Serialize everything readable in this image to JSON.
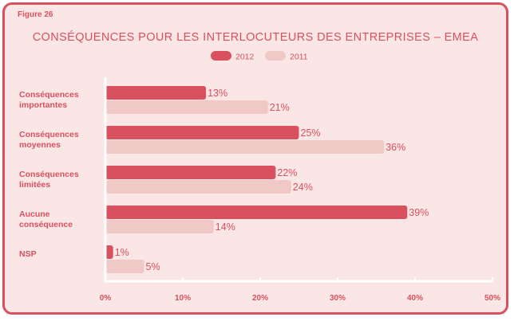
{
  "figure_label": "Figure 26",
  "chart_data": {
    "type": "bar",
    "orientation": "horizontal",
    "title": "CONSÉQUENCES POUR LES INTERLOCUTEURS DES ENTREPRISES – EMEA",
    "categories": [
      [
        "Conséquences",
        "importantes"
      ],
      [
        "Conséquences",
        "moyennes"
      ],
      [
        "Conséquences",
        "limitées"
      ],
      [
        "Aucune",
        "conséquence"
      ],
      [
        "NSP"
      ]
    ],
    "series": [
      {
        "name": "2012",
        "values": [
          13,
          25,
          22,
          39,
          1
        ],
        "color": "#d9505e"
      },
      {
        "name": "2011",
        "values": [
          21,
          36,
          24,
          14,
          5
        ],
        "color": "#f0c8c6"
      }
    ],
    "value_suffix": "%",
    "xlim": [
      0,
      50
    ],
    "xticks": [
      "0%",
      "10%",
      "20%",
      "30%",
      "40%",
      "50%"
    ],
    "legend_position": "top-center",
    "grid": false,
    "colors": {
      "accent": "#d9505e",
      "background": "#fbe6e6",
      "axis": "#ffffff",
      "label": "#d9505e",
      "value_label": "#d9505e"
    }
  }
}
